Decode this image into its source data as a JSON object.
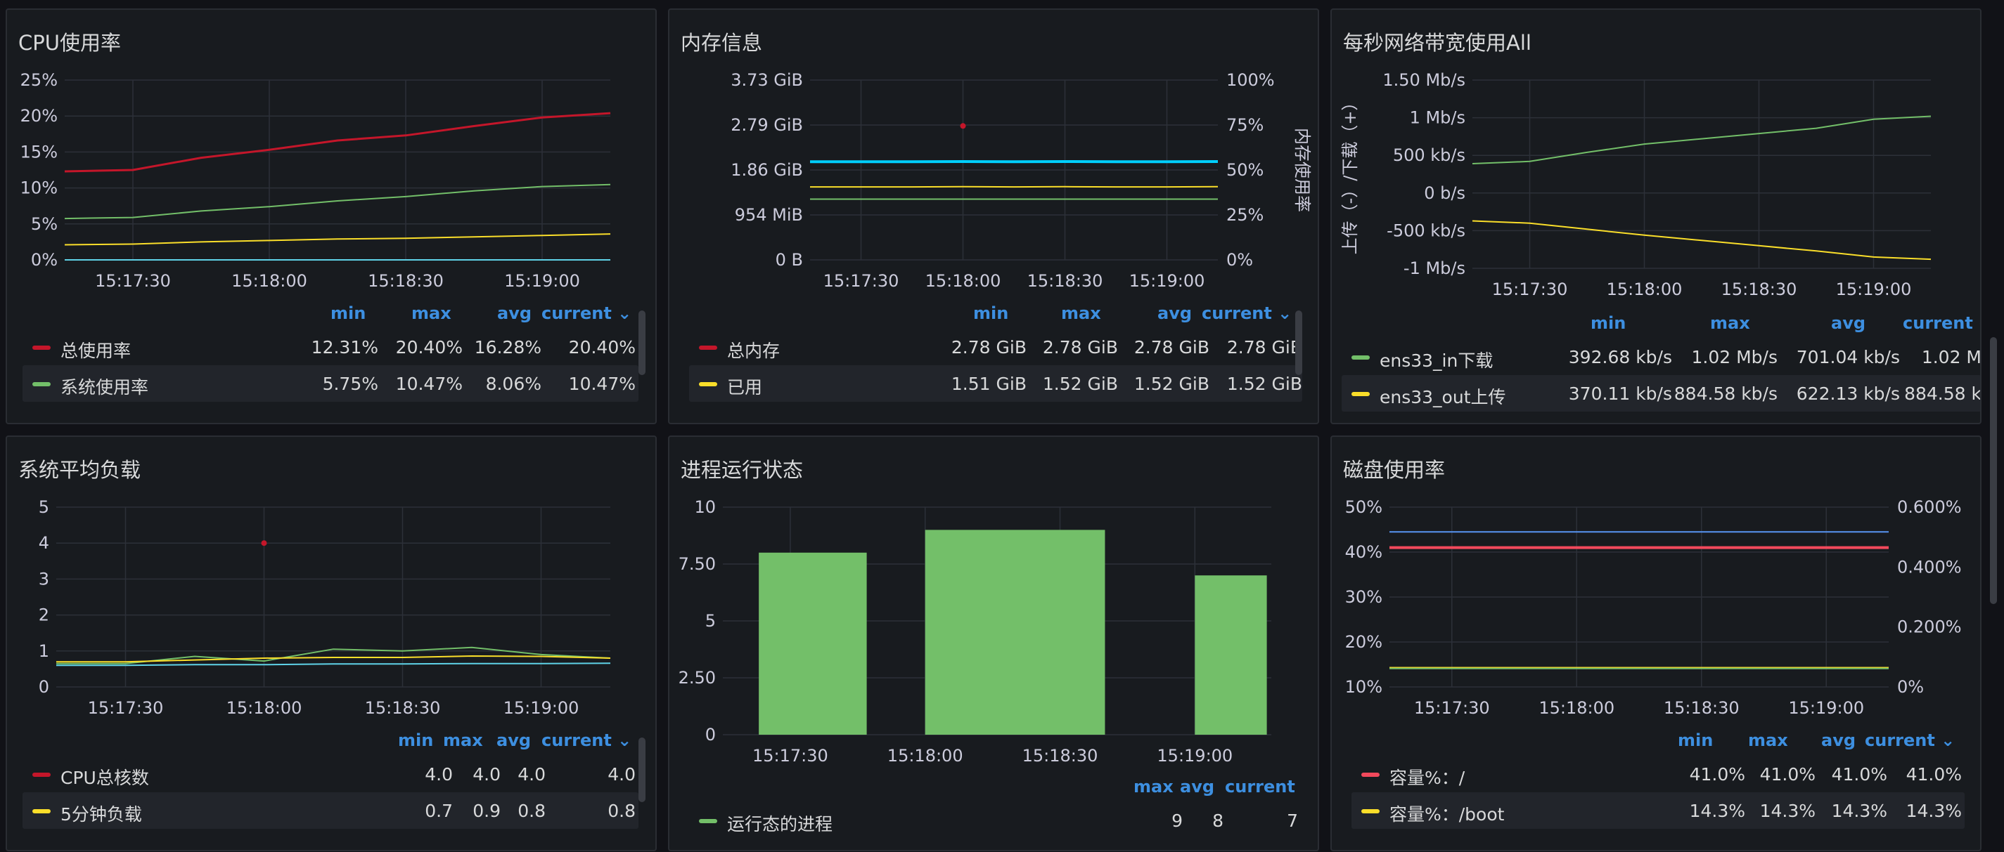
{
  "colors": {
    "red": "#c4162a",
    "green": "#73bf69",
    "yellow": "#fade2a",
    "cyan": "#5fd3e8",
    "blue": "#5794f2",
    "grid": "#2c3038",
    "axis": "#ccccdc"
  },
  "panels": {
    "cpu": {
      "title": "CPU使用率",
      "legend_headers": [
        "min",
        "max",
        "avg",
        "current ⌄"
      ],
      "legend": [
        {
          "name": "总使用率",
          "color": "#c4162a",
          "values": [
            "12.31%",
            "20.40%",
            "16.28%",
            "20.40%"
          ]
        },
        {
          "name": "系统使用率",
          "color": "#73bf69",
          "values": [
            "5.75%",
            "10.47%",
            "8.06%",
            "10.47%"
          ]
        }
      ]
    },
    "mem": {
      "title": "内存信息",
      "right_axis_label": "内存使用率",
      "legend_headers": [
        "min",
        "max",
        "avg",
        "current ⌄"
      ],
      "legend": [
        {
          "name": "总内存",
          "color": "#c4162a",
          "values": [
            "2.78 GiB",
            "2.78 GiB",
            "2.78 GiB",
            "2.78 GiB"
          ]
        },
        {
          "name": "已用",
          "color": "#fade2a",
          "values": [
            "1.51 GiB",
            "1.52 GiB",
            "1.52 GiB",
            "1.52 GiB"
          ]
        }
      ]
    },
    "net": {
      "title": "每秒网络带宽使用All",
      "y_axis_label": "上传（-）/下载（+）",
      "legend_headers": [
        "min",
        "max",
        "avg",
        "current ‹"
      ],
      "legend": [
        {
          "name": "ens33_in下载",
          "color": "#73bf69",
          "values": [
            "392.68 kb/s",
            "1.02 Mb/s",
            "701.04 kb/s",
            "1.02 M"
          ]
        },
        {
          "name": "ens33_out上传",
          "color": "#fade2a",
          "values": [
            "370.11 kb/s",
            "884.58 kb/s",
            "622.13 kb/s",
            "884.58 k"
          ]
        }
      ]
    },
    "load": {
      "title": "系统平均负载",
      "legend_headers": [
        "min",
        "max",
        "avg",
        "current ⌄"
      ],
      "legend": [
        {
          "name": "CPU总核数",
          "color": "#c4162a",
          "values": [
            "4.0",
            "4.0",
            "4.0",
            "4.0"
          ]
        },
        {
          "name": "5分钟负载",
          "color": "#fade2a",
          "values": [
            "0.7",
            "0.9",
            "0.8",
            "0.8"
          ]
        }
      ]
    },
    "proc": {
      "title": "进程运行状态",
      "legend_headers": [
        "max",
        "avg",
        "current"
      ],
      "legend": [
        {
          "name": "运行态的进程",
          "color": "#73bf69",
          "values": [
            "9",
            "8",
            "7"
          ]
        }
      ]
    },
    "disk": {
      "title": "磁盘使用率",
      "legend_headers": [
        "min",
        "max",
        "avg",
        "current ⌄"
      ],
      "legend": [
        {
          "name": "容量%：/",
          "color": "#f2495c",
          "values": [
            "41.0%",
            "41.0%",
            "41.0%",
            "41.0%"
          ]
        },
        {
          "name": "容量%：/boot",
          "color": "#fade2a",
          "values": [
            "14.3%",
            "14.3%",
            "14.3%",
            "14.3%"
          ]
        }
      ]
    }
  },
  "chart_data": [
    {
      "id": "cpu",
      "type": "line",
      "title": "CPU使用率",
      "x": [
        "15:17:15",
        "15:17:30",
        "15:17:45",
        "15:18:00",
        "15:18:15",
        "15:18:30",
        "15:18:45",
        "15:19:00",
        "15:19:15"
      ],
      "xticks": [
        "15:17:30",
        "15:18:00",
        "15:18:30",
        "15:19:00"
      ],
      "yticks": [
        "0%",
        "5%",
        "10%",
        "15%",
        "20%",
        "25%"
      ],
      "ylim": [
        0,
        25
      ],
      "series": [
        {
          "name": "总使用率",
          "color": "#c4162a",
          "width": 3,
          "values": [
            12.3,
            12.5,
            14.2,
            15.3,
            16.6,
            17.3,
            18.6,
            19.8,
            20.4
          ]
        },
        {
          "name": "系统使用率",
          "color": "#73bf69",
          "width": 2,
          "values": [
            5.75,
            5.9,
            6.8,
            7.4,
            8.2,
            8.8,
            9.6,
            10.2,
            10.47
          ]
        },
        {
          "color": "#fade2a",
          "width": 2,
          "values": [
            2.1,
            2.2,
            2.5,
            2.7,
            2.9,
            3.0,
            3.2,
            3.4,
            3.6
          ]
        },
        {
          "color": "#5fd3e8",
          "width": 2,
          "values": [
            0,
            0,
            0,
            0,
            0,
            0,
            0,
            0,
            0
          ]
        }
      ]
    },
    {
      "id": "mem",
      "type": "line",
      "title": "内存信息",
      "x": [
        "15:17:15",
        "15:17:30",
        "15:17:45",
        "15:18:00",
        "15:18:15",
        "15:18:30",
        "15:18:45",
        "15:19:00",
        "15:19:15"
      ],
      "xticks": [
        "15:17:30",
        "15:18:00",
        "15:18:30",
        "15:19:00"
      ],
      "yticks": [
        "0 B",
        "954 MiB",
        "1.86 GiB",
        "2.79 GiB",
        "3.73 GiB"
      ],
      "y2ticks": [
        "0%",
        "25%",
        "50%",
        "75%",
        "100%"
      ],
      "y2label": "内存使用率",
      "ylim": [
        0,
        100
      ],
      "series": [
        {
          "name": "总内存",
          "color": "#c4162a",
          "points": true,
          "values": [
            null,
            null,
            null,
            74.5,
            null,
            null,
            null,
            null,
            null
          ]
        },
        {
          "color": "#00cfff",
          "width": 4,
          "values": [
            54.6,
            54.6,
            54.6,
            54.7,
            54.6,
            54.7,
            54.6,
            54.6,
            54.7
          ]
        },
        {
          "name": "已用",
          "color": "#fade2a",
          "width": 2,
          "values": [
            40.6,
            40.6,
            40.6,
            40.7,
            40.6,
            40.7,
            40.6,
            40.6,
            40.7
          ]
        },
        {
          "color": "#73bf69",
          "width": 2,
          "values": [
            33.8,
            33.8,
            33.8,
            33.8,
            33.8,
            33.8,
            33.8,
            33.8,
            33.8
          ]
        }
      ]
    },
    {
      "id": "net",
      "type": "line",
      "title": "每秒网络带宽使用All",
      "x": [
        "15:17:15",
        "15:17:30",
        "15:17:45",
        "15:18:00",
        "15:18:15",
        "15:18:30",
        "15:18:45",
        "15:19:00",
        "15:19:15"
      ],
      "xticks": [
        "15:17:30",
        "15:18:00",
        "15:18:30",
        "15:19:00"
      ],
      "yticks": [
        "-1 Mb/s",
        "-500 kb/s",
        "0 b/s",
        "500 kb/s",
        "1 Mb/s",
        "1.50 Mb/s"
      ],
      "ylabel": "上传（-）/下载（+）",
      "ylim": [
        -1.0,
        1.5
      ],
      "series": [
        {
          "name": "ens33_in下载",
          "color": "#73bf69",
          "width": 2,
          "values": [
            0.39,
            0.42,
            0.54,
            0.65,
            0.72,
            0.79,
            0.86,
            0.98,
            1.02
          ]
        },
        {
          "name": "ens33_out上传",
          "color": "#fade2a",
          "width": 2,
          "values": [
            -0.37,
            -0.4,
            -0.48,
            -0.56,
            -0.63,
            -0.7,
            -0.77,
            -0.85,
            -0.88
          ]
        }
      ]
    },
    {
      "id": "load",
      "type": "line",
      "title": "系统平均负载",
      "x": [
        "15:17:15",
        "15:17:30",
        "15:17:45",
        "15:18:00",
        "15:18:15",
        "15:18:30",
        "15:18:45",
        "15:19:00",
        "15:19:15"
      ],
      "xticks": [
        "15:17:30",
        "15:18:00",
        "15:18:30",
        "15:19:00"
      ],
      "yticks": [
        "0",
        "1",
        "2",
        "3",
        "4",
        "5"
      ],
      "ylim": [
        0,
        5
      ],
      "series": [
        {
          "name": "CPU总核数",
          "color": "#c4162a",
          "points": true,
          "values": [
            null,
            null,
            null,
            4.0,
            null,
            null,
            null,
            null,
            null
          ]
        },
        {
          "color": "#73bf69",
          "width": 2,
          "values": [
            0.65,
            0.65,
            0.85,
            0.72,
            1.05,
            1.0,
            1.1,
            0.9,
            0.8
          ]
        },
        {
          "name": "5分钟负载",
          "color": "#fade2a",
          "width": 2,
          "values": [
            0.7,
            0.7,
            0.75,
            0.8,
            0.82,
            0.82,
            0.86,
            0.85,
            0.8
          ]
        },
        {
          "color": "#5fd3e8",
          "width": 2,
          "values": [
            0.6,
            0.6,
            0.62,
            0.62,
            0.64,
            0.64,
            0.65,
            0.65,
            0.66
          ]
        }
      ]
    },
    {
      "id": "proc",
      "type": "bar",
      "title": "进程运行状态",
      "xticks": [
        "15:17:30",
        "15:18:00",
        "15:18:30",
        "15:19:00"
      ],
      "yticks": [
        "0",
        "2.50",
        "5",
        "7.50",
        "10"
      ],
      "ylim": [
        0,
        10
      ],
      "bars": [
        {
          "x0": "15:17:23",
          "x1": "15:17:47",
          "value": 8
        },
        {
          "x0": "15:18:00",
          "x1": "15:18:40",
          "value": 9
        },
        {
          "x0": "15:19:00",
          "x1": "15:19:16",
          "value": 7
        }
      ],
      "color": "#73bf69"
    },
    {
      "id": "disk",
      "type": "line",
      "title": "磁盘使用率",
      "x": [
        "15:17:15",
        "15:17:30",
        "15:17:45",
        "15:18:00",
        "15:18:15",
        "15:18:30",
        "15:18:45",
        "15:19:00",
        "15:19:15"
      ],
      "xticks": [
        "15:17:30",
        "15:18:00",
        "15:18:30",
        "15:19:00"
      ],
      "yticks": [
        "10%",
        "20%",
        "30%",
        "40%",
        "50%"
      ],
      "y2ticks": [
        "0%",
        "0.200%",
        "0.400%",
        "0.600%"
      ],
      "ylim": [
        10,
        50
      ],
      "series": [
        {
          "color": "#5794f2",
          "width": 2,
          "values": [
            44.5,
            44.5,
            44.5,
            44.5,
            44.5,
            44.5,
            44.5,
            44.5,
            44.5
          ]
        },
        {
          "name": "容量%：/",
          "color": "#f2495c",
          "width": 4,
          "values": [
            41.0,
            41.0,
            41.0,
            41.0,
            41.0,
            41.0,
            41.0,
            41.0,
            41.0
          ]
        },
        {
          "name": "容量%：/boot",
          "color": "#fade2a",
          "width": 2,
          "values": [
            14.3,
            14.3,
            14.3,
            14.3,
            14.3,
            14.3,
            14.3,
            14.3,
            14.3
          ]
        },
        {
          "color": "#73bf69",
          "width": 2,
          "values": [
            14.1,
            14.1,
            14.1,
            14.1,
            14.1,
            14.1,
            14.1,
            14.1,
            14.1
          ]
        }
      ]
    }
  ]
}
